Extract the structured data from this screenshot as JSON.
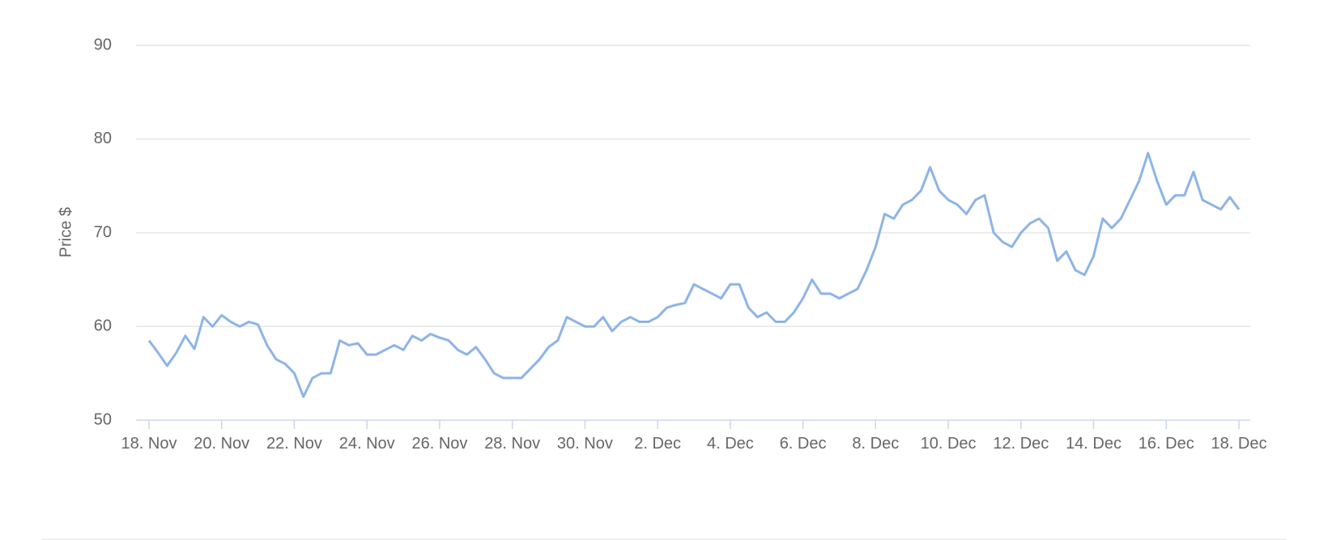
{
  "chart_data": {
    "type": "line",
    "y_axis_label": "Price $",
    "categories": [
      "18. Nov",
      null,
      null,
      null,
      null,
      null,
      null,
      null,
      "20. Nov",
      null,
      null,
      null,
      null,
      null,
      null,
      null,
      "22. Nov",
      null,
      null,
      null,
      null,
      null,
      null,
      null,
      "24. Nov",
      null,
      null,
      null,
      null,
      null,
      null,
      null,
      "26. Nov",
      null,
      null,
      null,
      null,
      null,
      null,
      null,
      "28. Nov",
      null,
      null,
      null,
      null,
      null,
      null,
      null,
      "30. Nov",
      null,
      null,
      null,
      null,
      null,
      null,
      null,
      "2. Dec",
      null,
      null,
      null,
      null,
      null,
      null,
      null,
      "4. Dec",
      null,
      null,
      null,
      null,
      null,
      null,
      null,
      "6. Dec",
      null,
      null,
      null,
      null,
      null,
      null,
      null,
      "8. Dec",
      null,
      null,
      null,
      null,
      null,
      null,
      null,
      "10. Dec",
      null,
      null,
      null,
      null,
      null,
      null,
      null,
      "12. Dec",
      null,
      null,
      null,
      null,
      null,
      null,
      null,
      "14. Dec",
      null,
      null,
      null,
      null,
      null,
      null,
      null,
      "16. Dec",
      null,
      null,
      null,
      null,
      null,
      null,
      null,
      "18. Dec"
    ],
    "values": [
      58.5,
      57.2,
      55.8,
      57.2,
      59.0,
      57.6,
      61.0,
      60.0,
      61.2,
      60.5,
      60.0,
      60.5,
      60.2,
      58.0,
      56.5,
      56.0,
      55.0,
      52.5,
      54.5,
      55.0,
      55.0,
      58.5,
      58.0,
      58.2,
      57.0,
      57.0,
      57.5,
      58.0,
      57.5,
      59.0,
      58.5,
      59.2,
      58.8,
      58.5,
      57.5,
      57.0,
      57.8,
      56.5,
      55.0,
      54.5,
      54.5,
      54.5,
      55.5,
      56.5,
      57.8,
      58.5,
      61.0,
      60.5,
      60.0,
      60.0,
      61.0,
      59.5,
      60.5,
      61.0,
      60.5,
      60.5,
      61.0,
      62.0,
      62.3,
      62.5,
      64.5,
      64.0,
      63.5,
      63.0,
      64.5,
      64.5,
      62.0,
      61.0,
      61.5,
      60.5,
      60.5,
      61.5,
      63.0,
      65.0,
      63.5,
      63.5,
      63.0,
      63.5,
      64.0,
      66.0,
      68.5,
      72.0,
      71.5,
      73.0,
      73.5,
      74.5,
      77.0,
      74.5,
      73.5,
      73.0,
      72.0,
      73.5,
      74.0,
      70.0,
      69.0,
      68.5,
      70.0,
      71.0,
      71.5,
      70.5,
      67.0,
      68.0,
      66.0,
      65.5,
      67.5,
      71.5,
      70.5,
      71.5,
      73.5,
      75.5,
      78.5,
      75.5,
      73.0,
      74.0,
      74.0,
      76.5,
      73.5,
      73.0,
      72.5,
      73.8,
      72.5
    ],
    "color": "#8db4e8",
    "ylim": [
      50,
      90
    ],
    "yticks": [
      50,
      60,
      70,
      80,
      90
    ],
    "grid": true
  }
}
